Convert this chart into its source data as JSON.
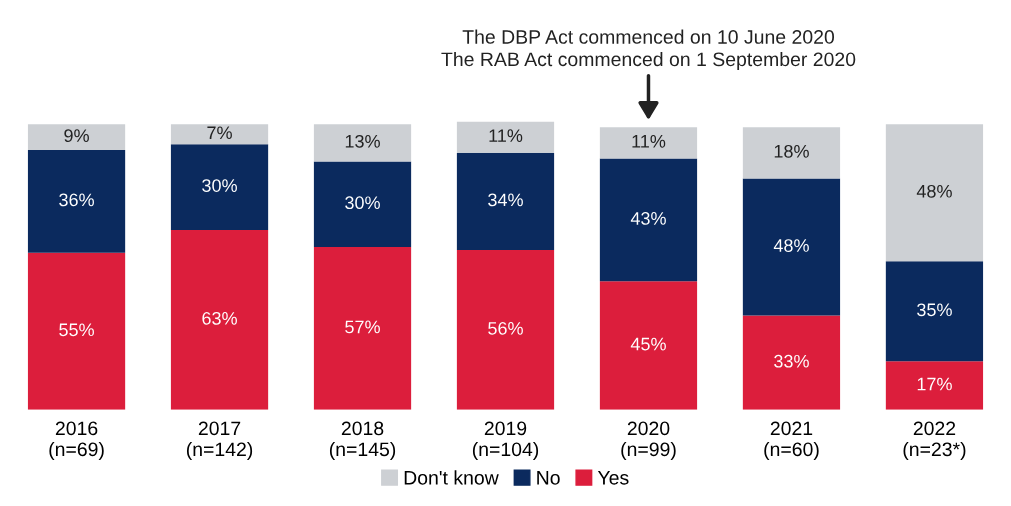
{
  "chart_data": {
    "type": "bar",
    "stacked": true,
    "legend": "bottom",
    "categories": [
      "2016\n(n=69)",
      "2017\n(n=142)",
      "2018\n(n=145)",
      "2019\n(n=104)",
      "2020\n(n=99)",
      "2021\n(n=60)",
      "2022\n(n=23*)"
    ],
    "series": [
      {
        "name": "Yes",
        "color": "#dc1e3c",
        "values": [
          55,
          63,
          57,
          56,
          45,
          33,
          17
        ],
        "value_labels": [
          "55%",
          "63%",
          "57%",
          "56%",
          "45%",
          "33%",
          "17%"
        ]
      },
      {
        "name": "No",
        "color": "#0b2a5e",
        "values": [
          36,
          30,
          30,
          34,
          43,
          48,
          35
        ],
        "value_labels": [
          "36%",
          "30%",
          "30%",
          "34%",
          "43%",
          "48%",
          "35%"
        ]
      },
      {
        "name": "Don't know",
        "color": "#cdd0d4",
        "values": [
          9,
          7,
          13,
          11,
          11,
          18,
          48
        ],
        "value_labels": [
          "9%",
          "7%",
          "13%",
          "11%",
          "11%",
          "18%",
          "48%"
        ]
      }
    ],
    "annotations": [
      {
        "text": "The DBP Act commenced on 10 June 2020\nThe RAB Act commenced on 1 September 2020",
        "x": "2020\n(n=99)",
        "y": 100
      }
    ]
  }
}
